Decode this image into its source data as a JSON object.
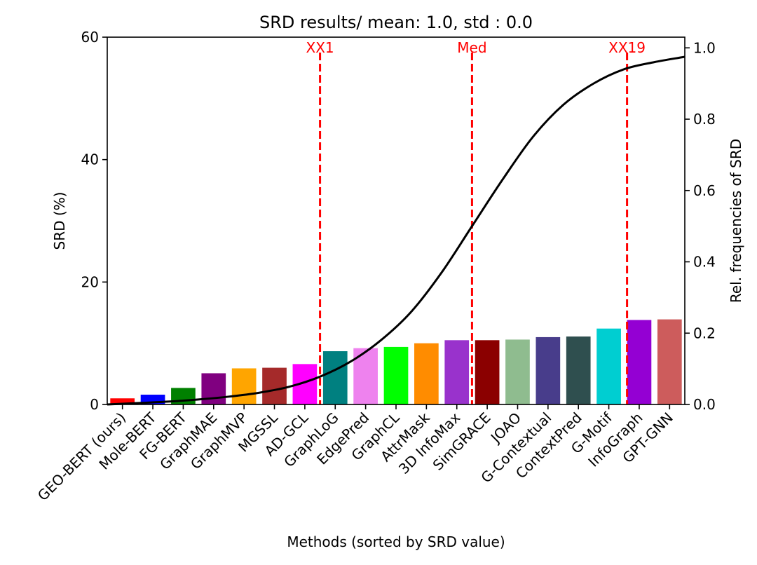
{
  "chart_data": {
    "type": "bar",
    "title": "SRD results/ mean: 1.0, std : 0.0",
    "xlabel": "Methods (sorted by SRD value)",
    "ylabel": "SRD (%)",
    "y2label": "Rel. frequencies of SRD",
    "ylim": [
      0,
      60
    ],
    "y2lim": [
      0,
      1.03
    ],
    "yticks": [
      "0",
      "20",
      "40",
      "60"
    ],
    "y2ticks": [
      "0.0",
      "0.2",
      "0.4",
      "0.6",
      "0.8",
      "1.0"
    ],
    "grid": false,
    "categories": [
      "GEO-BERT (ours)",
      "Mole-BERT",
      "FG-BERT",
      "GraphMAE",
      "GraphMVP",
      "MGSSL",
      "AD-GCL",
      "GraphLoG",
      "EdgePred",
      "GraphCL",
      "AttrMask",
      "3D InfoMax",
      "SimGRACE",
      "JOAO",
      "G-Contextual",
      "ContextPred",
      "G-Motif",
      "InfoGraph",
      "GPT-GNN"
    ],
    "values": [
      1.0,
      1.6,
      2.7,
      5.1,
      5.9,
      6.0,
      6.6,
      8.7,
      9.2,
      9.4,
      10.0,
      10.5,
      10.5,
      10.6,
      11.0,
      11.1,
      12.4,
      13.8,
      13.9
    ],
    "colors": [
      "#ff0000",
      "#0000ff",
      "#008000",
      "#800080",
      "#ffa500",
      "#a52a2a",
      "#ff00ff",
      "#008080",
      "#ee82ee",
      "#00ff00",
      "#ff8c00",
      "#9932cc",
      "#8b0000",
      "#8fbc8f",
      "#483d8b",
      "#2f4f4f",
      "#00ced1",
      "#9400d3",
      "#cd5c5c"
    ],
    "vlines": [
      {
        "label": "XX1",
        "position": 6.5
      },
      {
        "label": "Med",
        "position": 11.5
      },
      {
        "label": "XX19",
        "position": 16.6
      }
    ],
    "vline_color": "#ff0000",
    "curve": {
      "type": "cdf",
      "color": "#000000",
      "x": [
        -0.5,
        0.5,
        1.5,
        2.5,
        3.5,
        4.5,
        5.5,
        6.5,
        7.5,
        8.5,
        9.5,
        10.5,
        11.5,
        12.5,
        13.5,
        14.5,
        15.5,
        16.5,
        17.5,
        18.5
      ],
      "y": [
        0.0,
        0.004,
        0.008,
        0.014,
        0.022,
        0.033,
        0.05,
        0.078,
        0.12,
        0.18,
        0.26,
        0.37,
        0.5,
        0.63,
        0.75,
        0.84,
        0.9,
        0.94,
        0.96,
        0.975
      ]
    }
  }
}
